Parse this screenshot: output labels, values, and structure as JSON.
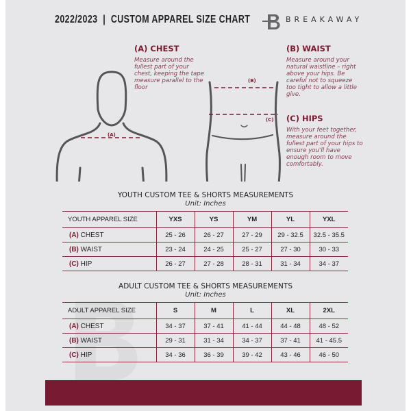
{
  "header": {
    "title": "2022/2023  |  CUSTOM APPAREL SIZE CHART",
    "brand": "BREAKAWAY"
  },
  "measures": {
    "chest": {
      "title": "(A) CHEST",
      "desc": "Measure around the fullest part of your chest, keeping the tape measure parallel to the floor",
      "marker": "(A)"
    },
    "waist": {
      "title": "(B) WAIST",
      "desc": "Measure around your natural waistline – right above your hips. Be careful not to squeeze too tight to allow a little give.",
      "marker": "(B)"
    },
    "hips": {
      "title": "(C) HIPS",
      "desc": "With your feet together, measure around the fullest part of your hips to ensure you'll have enough room to move comfortably.",
      "marker": "(C)"
    }
  },
  "colors": {
    "accent": "#781a31",
    "background": "#e7e7e9"
  },
  "youth": {
    "title": "YOUTH CUSTOM TEE & SHORTS MEASUREMENTS",
    "unit": "Unit: Inches",
    "header": "YOUTH APPAREL SIZE",
    "sizes": [
      "YXS",
      "YS",
      "YM",
      "YL",
      "YXL"
    ],
    "rows": [
      {
        "letter": "(A)",
        "label": "CHEST",
        "values": [
          "25 - 26",
          "26 - 27",
          "27 - 29",
          "29 - 32.5",
          "32.5 - 35.5"
        ]
      },
      {
        "letter": "(B)",
        "label": "WAIST",
        "values": [
          "23 - 24",
          "24 - 25",
          "25 - 27",
          "27 - 30",
          "30 - 33"
        ]
      },
      {
        "letter": "(C)",
        "label": "HIP",
        "values": [
          "26 - 27",
          "27 - 28",
          "28 - 31",
          "31 - 34",
          "34 - 37"
        ]
      }
    ]
  },
  "adult": {
    "title": "ADULT CUSTOM TEE & SHORTS MEASUREMENTS",
    "unit": "Unit: Inches",
    "header": "ADULT APPAREL SIZE",
    "sizes": [
      "S",
      "M",
      "L",
      "XL",
      "2XL"
    ],
    "rows": [
      {
        "letter": "(A)",
        "label": "CHEST",
        "values": [
          "34 - 37",
          "37 - 41",
          "41 - 44",
          "44 - 48",
          "48 - 52"
        ]
      },
      {
        "letter": "(B)",
        "label": "WAIST",
        "values": [
          "29 - 31",
          "31 - 34",
          "34 - 37",
          "37 - 41",
          "41 - 45.5"
        ]
      },
      {
        "letter": "(C)",
        "label": "HIP",
        "values": [
          "34 - 36",
          "36 - 39",
          "39 - 42",
          "43 - 46",
          "46 - 50"
        ]
      }
    ]
  }
}
